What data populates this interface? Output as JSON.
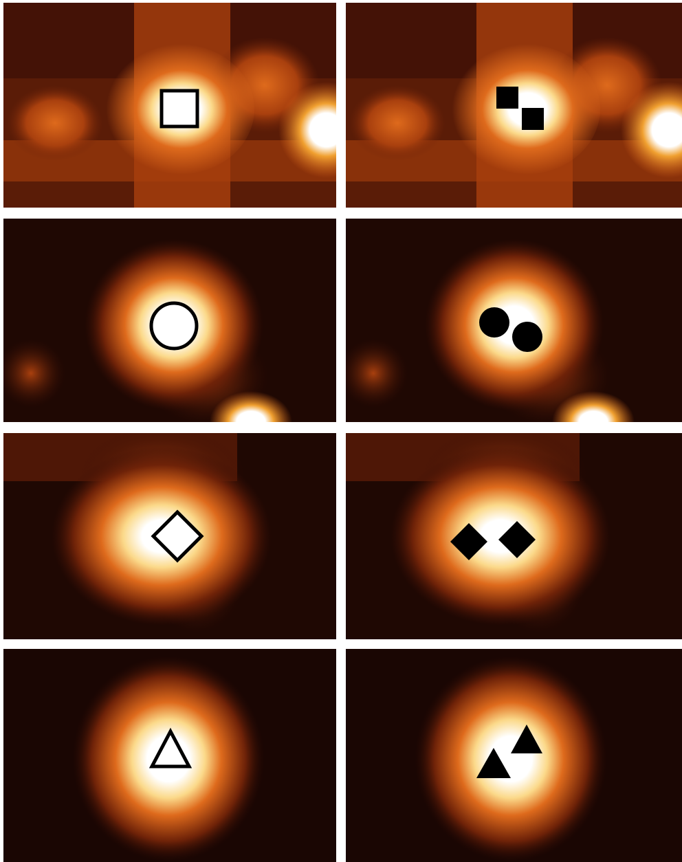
{
  "colormap": [
    "#140503",
    "#3a0e05",
    "#6e2208",
    "#a9400e",
    "#de6a1c",
    "#f0a030",
    "#fbd98a",
    "#ffffff"
  ],
  "marker_colors": {
    "outline": "#000000",
    "fill_open": "#ffffff",
    "fill_solid": "#000000"
  },
  "rows": [
    {
      "name": "square",
      "left": {
        "marker": "open-square",
        "count": 1
      },
      "right": {
        "marker": "filled-square",
        "count": 2
      }
    },
    {
      "name": "circle",
      "left": {
        "marker": "open-circle",
        "count": 1
      },
      "right": {
        "marker": "filled-circle",
        "count": 2
      }
    },
    {
      "name": "diamond",
      "left": {
        "marker": "open-diamond",
        "count": 1
      },
      "right": {
        "marker": "filled-diamond",
        "count": 2
      }
    },
    {
      "name": "triangle",
      "left": {
        "marker": "open-triangle",
        "count": 1
      },
      "right": {
        "marker": "filled-triangle",
        "count": 2
      }
    }
  ]
}
